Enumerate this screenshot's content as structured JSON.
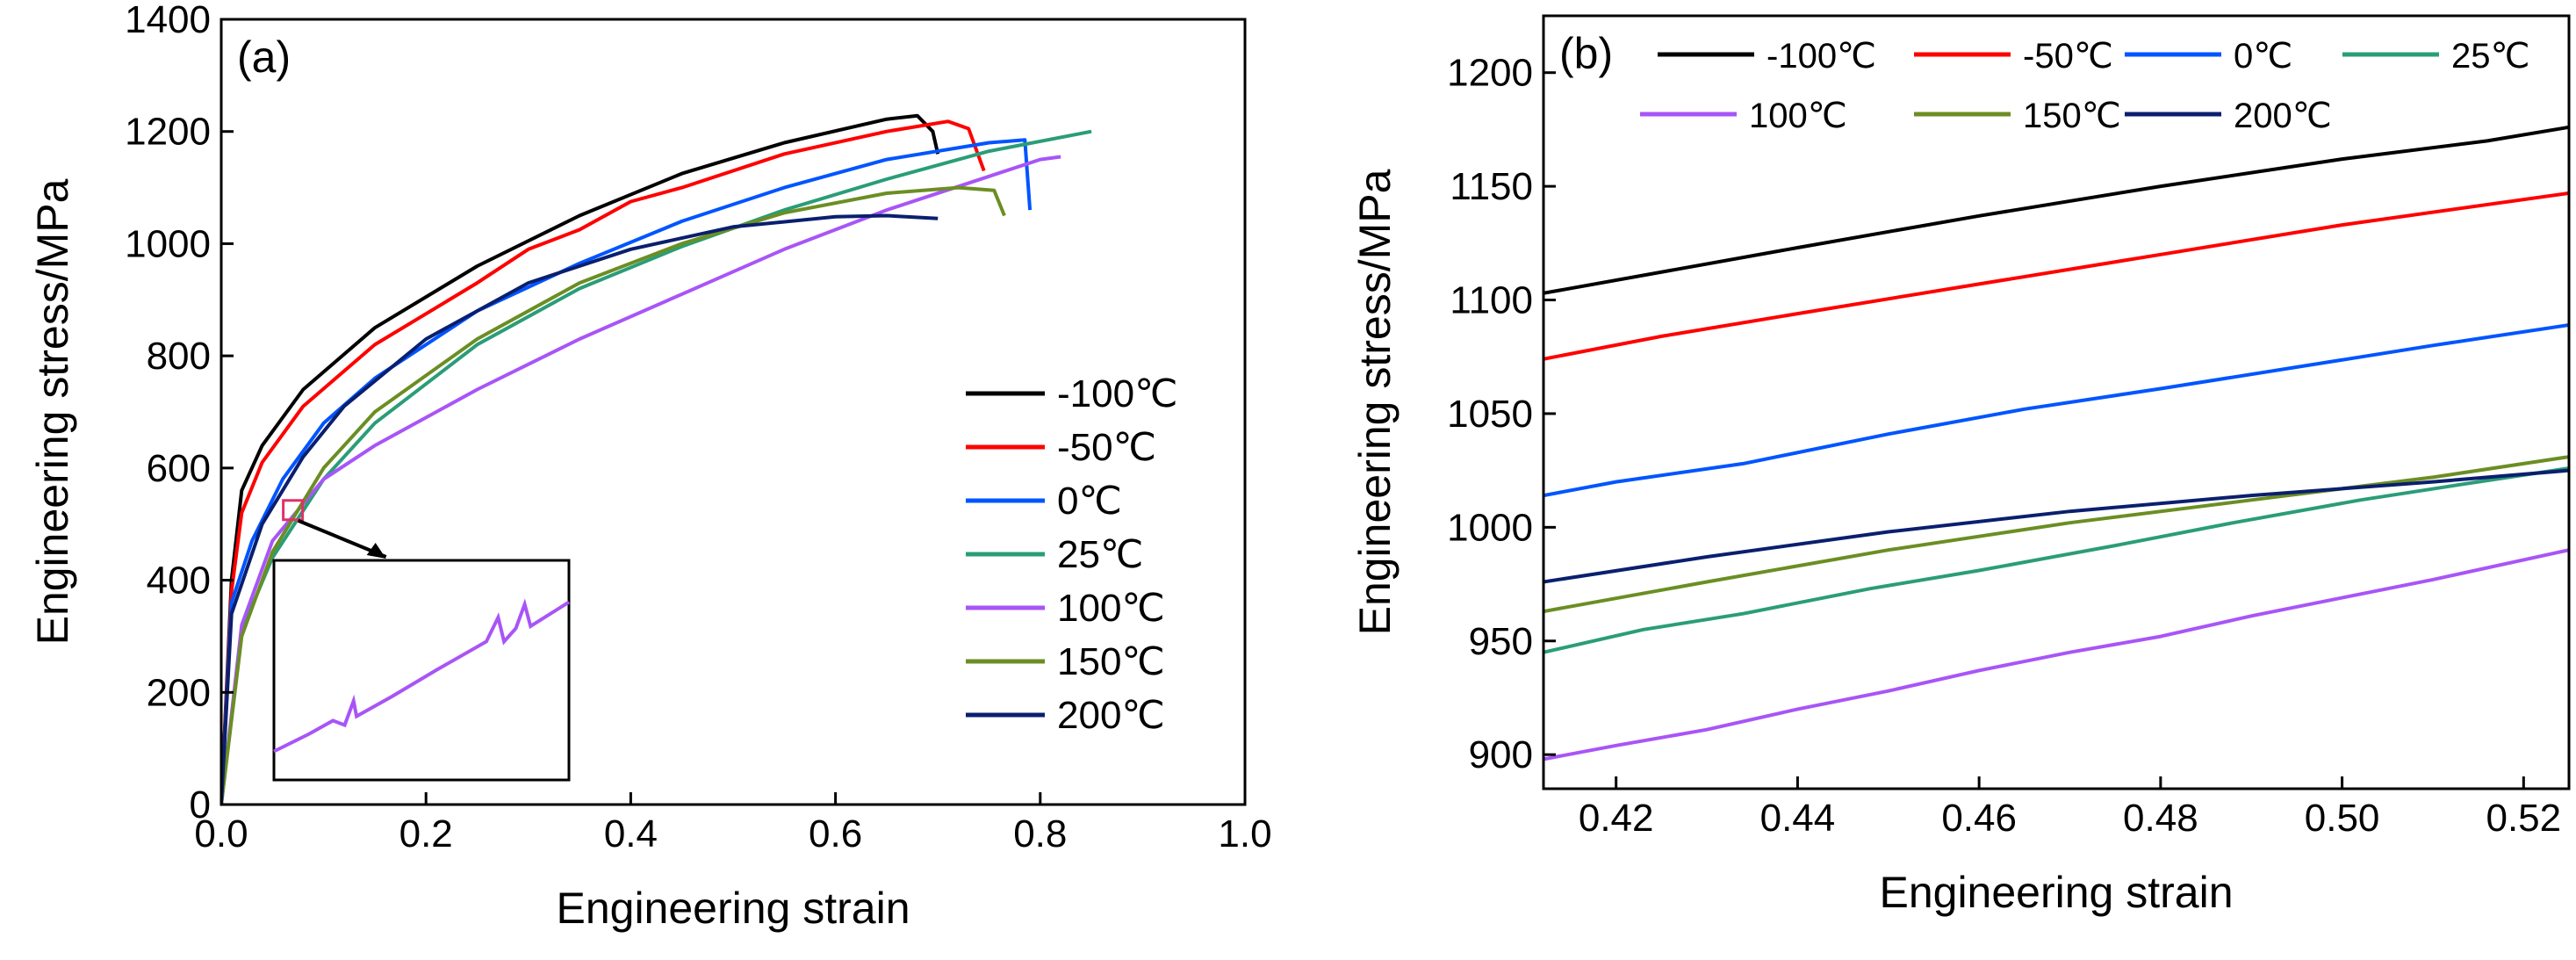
{
  "chart_data": [
    {
      "type": "line",
      "panel_label": "(a)",
      "xlabel": "Engineering strain",
      "ylabel": "Engineering stress/MPa",
      "xlim": [
        0,
        1.0
      ],
      "ylim": [
        0,
        1400
      ],
      "x_ticks": [
        0.0,
        0.2,
        0.4,
        0.6,
        0.8,
        1.0
      ],
      "x_tick_labels": [
        "0.0",
        "0.2",
        "0.4",
        "0.6",
        "0.8",
        "1.0"
      ],
      "y_ticks": [
        0,
        200,
        400,
        600,
        800,
        1000,
        1200,
        1400
      ],
      "y_tick_labels": [
        "0",
        "200",
        "400",
        "600",
        "800",
        "1000",
        "1200",
        "1400"
      ],
      "grid": false,
      "legend_position": "lower-right",
      "inset": "zoom of the 100℃ curve near strain 0.07, stress 520 MPa",
      "series": [
        {
          "name": "-100℃",
          "color": "#000000",
          "points": [
            [
              0,
              0
            ],
            [
              0.01,
              400
            ],
            [
              0.02,
              560
            ],
            [
              0.04,
              640
            ],
            [
              0.08,
              740
            ],
            [
              0.15,
              850
            ],
            [
              0.25,
              960
            ],
            [
              0.35,
              1050
            ],
            [
              0.45,
              1125
            ],
            [
              0.55,
              1180
            ],
            [
              0.65,
              1222
            ],
            [
              0.68,
              1228
            ],
            [
              0.695,
              1200
            ],
            [
              0.7,
              1160
            ]
          ]
        },
        {
          "name": "-50℃",
          "color": "#ff0000",
          "points": [
            [
              0,
              0
            ],
            [
              0.01,
              380
            ],
            [
              0.02,
              520
            ],
            [
              0.04,
              610
            ],
            [
              0.08,
              710
            ],
            [
              0.15,
              820
            ],
            [
              0.25,
              930
            ],
            [
              0.3,
              990
            ],
            [
              0.35,
              1025
            ],
            [
              0.4,
              1075
            ],
            [
              0.45,
              1100
            ],
            [
              0.55,
              1160
            ],
            [
              0.65,
              1200
            ],
            [
              0.71,
              1218
            ],
            [
              0.73,
              1205
            ],
            [
              0.745,
              1130
            ]
          ]
        },
        {
          "name": "0℃",
          "color": "#0055ff",
          "points": [
            [
              0,
              0
            ],
            [
              0.01,
              360
            ],
            [
              0.03,
              470
            ],
            [
              0.06,
              580
            ],
            [
              0.1,
              680
            ],
            [
              0.15,
              760
            ],
            [
              0.25,
              880
            ],
            [
              0.35,
              965
            ],
            [
              0.45,
              1040
            ],
            [
              0.55,
              1100
            ],
            [
              0.65,
              1150
            ],
            [
              0.75,
              1180
            ],
            [
              0.785,
              1185
            ],
            [
              0.79,
              1060
            ]
          ]
        },
        {
          "name": "25℃",
          "color": "#2a9d78",
          "points": [
            [
              0,
              0
            ],
            [
              0.02,
              310
            ],
            [
              0.05,
              440
            ],
            [
              0.1,
              580
            ],
            [
              0.15,
              680
            ],
            [
              0.25,
              820
            ],
            [
              0.35,
              920
            ],
            [
              0.45,
              995
            ],
            [
              0.55,
              1060
            ],
            [
              0.65,
              1115
            ],
            [
              0.75,
              1165
            ],
            [
              0.85,
              1200
            ]
          ]
        },
        {
          "name": "100℃",
          "color": "#a855f7",
          "points": [
            [
              0,
              0
            ],
            [
              0.02,
              320
            ],
            [
              0.05,
              470
            ],
            [
              0.1,
              580
            ],
            [
              0.15,
              640
            ],
            [
              0.25,
              740
            ],
            [
              0.35,
              830
            ],
            [
              0.45,
              910
            ],
            [
              0.55,
              990
            ],
            [
              0.65,
              1060
            ],
            [
              0.75,
              1120
            ],
            [
              0.8,
              1150
            ],
            [
              0.82,
              1155
            ]
          ]
        },
        {
          "name": "150℃",
          "color": "#6b8e23",
          "points": [
            [
              0,
              0
            ],
            [
              0.02,
              300
            ],
            [
              0.05,
              450
            ],
            [
              0.1,
              600
            ],
            [
              0.15,
              700
            ],
            [
              0.25,
              830
            ],
            [
              0.35,
              930
            ],
            [
              0.45,
              1000
            ],
            [
              0.55,
              1055
            ],
            [
              0.65,
              1090
            ],
            [
              0.72,
              1100
            ],
            [
              0.755,
              1095
            ],
            [
              0.765,
              1050
            ]
          ]
        },
        {
          "name": "200℃",
          "color": "#0a1f6e",
          "points": [
            [
              0,
              0
            ],
            [
              0.01,
              340
            ],
            [
              0.04,
              500
            ],
            [
              0.08,
              620
            ],
            [
              0.12,
              710
            ],
            [
              0.2,
              830
            ],
            [
              0.3,
              930
            ],
            [
              0.4,
              990
            ],
            [
              0.5,
              1030
            ],
            [
              0.6,
              1048
            ],
            [
              0.65,
              1050
            ],
            [
              0.7,
              1045
            ]
          ]
        }
      ]
    },
    {
      "type": "line",
      "panel_label": "(b)",
      "xlabel": "Engineering strain",
      "ylabel": "Engineering stress/MPa",
      "xlim": [
        0.412,
        0.525
      ],
      "ylim": [
        885,
        1225
      ],
      "x_ticks": [
        0.42,
        0.44,
        0.46,
        0.48,
        0.5,
        0.52
      ],
      "x_tick_labels": [
        "0.42",
        "0.44",
        "0.46",
        "0.48",
        "0.50",
        "0.52"
      ],
      "y_ticks": [
        900,
        950,
        1000,
        1050,
        1100,
        1150,
        1200
      ],
      "y_tick_labels": [
        "900",
        "950",
        "1000",
        "1050",
        "1100",
        "1150",
        "1200"
      ],
      "grid": false,
      "legend_position": "top, two rows",
      "series": [
        {
          "name": "-100℃",
          "color": "#000000",
          "points": [
            [
              0.412,
              1103
            ],
            [
              0.44,
              1123
            ],
            [
              0.46,
              1137
            ],
            [
              0.48,
              1150
            ],
            [
              0.5,
              1162
            ],
            [
              0.516,
              1170
            ],
            [
              0.525,
              1176
            ]
          ]
        },
        {
          "name": "-50℃",
          "color": "#ff0000",
          "points": [
            [
              0.412,
              1074
            ],
            [
              0.425,
              1084
            ],
            [
              0.44,
              1094
            ],
            [
              0.46,
              1107
            ],
            [
              0.48,
              1120
            ],
            [
              0.5,
              1133
            ],
            [
              0.525,
              1147
            ]
          ]
        },
        {
          "name": "0℃",
          "color": "#0055ff",
          "points": [
            [
              0.412,
              1014
            ],
            [
              0.42,
              1020
            ],
            [
              0.434,
              1028
            ],
            [
              0.45,
              1041
            ],
            [
              0.465,
              1052
            ],
            [
              0.48,
              1061
            ],
            [
              0.499,
              1073
            ],
            [
              0.51,
              1080
            ],
            [
              0.525,
              1089
            ]
          ]
        },
        {
          "name": "25℃",
          "color": "#2a9d78",
          "points": [
            [
              0.412,
              945
            ],
            [
              0.423,
              955
            ],
            [
              0.434,
              962
            ],
            [
              0.448,
              973
            ],
            [
              0.46,
              981
            ],
            [
              0.475,
              992
            ],
            [
              0.488,
              1002
            ],
            [
              0.502,
              1012
            ],
            [
              0.515,
              1020
            ],
            [
              0.525,
              1026
            ]
          ]
        },
        {
          "name": "100℃",
          "color": "#a855f7",
          "points": [
            [
              0.412,
              898
            ],
            [
              0.42,
              904
            ],
            [
              0.43,
              911
            ],
            [
              0.44,
              920
            ],
            [
              0.45,
              928
            ],
            [
              0.46,
              937
            ],
            [
              0.47,
              945
            ],
            [
              0.48,
              952
            ],
            [
              0.49,
              961
            ],
            [
              0.5,
              969
            ],
            [
              0.51,
              977
            ],
            [
              0.525,
              990
            ]
          ]
        },
        {
          "name": "150℃",
          "color": "#6b8e23",
          "points": [
            [
              0.412,
              963
            ],
            [
              0.43,
              976
            ],
            [
              0.45,
              990
            ],
            [
              0.47,
              1002
            ],
            [
              0.49,
              1012
            ],
            [
              0.51,
              1022
            ],
            [
              0.525,
              1031
            ]
          ]
        },
        {
          "name": "200℃",
          "color": "#0a1f6e",
          "points": [
            [
              0.412,
              976
            ],
            [
              0.43,
              987
            ],
            [
              0.45,
              998
            ],
            [
              0.47,
              1007
            ],
            [
              0.49,
              1014
            ],
            [
              0.51,
              1020
            ],
            [
              0.525,
              1025
            ]
          ]
        }
      ]
    }
  ]
}
